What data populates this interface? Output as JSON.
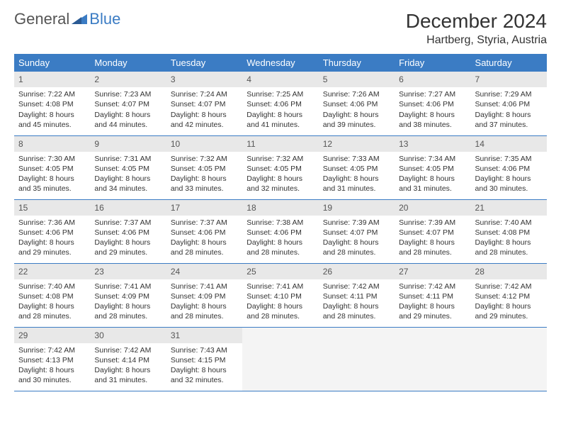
{
  "logo": {
    "text1": "General",
    "text2": "Blue"
  },
  "title": "December 2024",
  "location": "Hartberg, Styria, Austria",
  "colors": {
    "header_bg": "#3b7cc4",
    "header_text": "#ffffff",
    "daynum_bg": "#e8e8e8",
    "border": "#3b7cc4",
    "logo_blue": "#3b7cc4"
  },
  "day_headers": [
    "Sunday",
    "Monday",
    "Tuesday",
    "Wednesday",
    "Thursday",
    "Friday",
    "Saturday"
  ],
  "weeks": [
    [
      {
        "n": "1",
        "sr": "7:22 AM",
        "ss": "4:08 PM",
        "dl": "8 hours and 45 minutes."
      },
      {
        "n": "2",
        "sr": "7:23 AM",
        "ss": "4:07 PM",
        "dl": "8 hours and 44 minutes."
      },
      {
        "n": "3",
        "sr": "7:24 AM",
        "ss": "4:07 PM",
        "dl": "8 hours and 42 minutes."
      },
      {
        "n": "4",
        "sr": "7:25 AM",
        "ss": "4:06 PM",
        "dl": "8 hours and 41 minutes."
      },
      {
        "n": "5",
        "sr": "7:26 AM",
        "ss": "4:06 PM",
        "dl": "8 hours and 39 minutes."
      },
      {
        "n": "6",
        "sr": "7:27 AM",
        "ss": "4:06 PM",
        "dl": "8 hours and 38 minutes."
      },
      {
        "n": "7",
        "sr": "7:29 AM",
        "ss": "4:06 PM",
        "dl": "8 hours and 37 minutes."
      }
    ],
    [
      {
        "n": "8",
        "sr": "7:30 AM",
        "ss": "4:05 PM",
        "dl": "8 hours and 35 minutes."
      },
      {
        "n": "9",
        "sr": "7:31 AM",
        "ss": "4:05 PM",
        "dl": "8 hours and 34 minutes."
      },
      {
        "n": "10",
        "sr": "7:32 AM",
        "ss": "4:05 PM",
        "dl": "8 hours and 33 minutes."
      },
      {
        "n": "11",
        "sr": "7:32 AM",
        "ss": "4:05 PM",
        "dl": "8 hours and 32 minutes."
      },
      {
        "n": "12",
        "sr": "7:33 AM",
        "ss": "4:05 PM",
        "dl": "8 hours and 31 minutes."
      },
      {
        "n": "13",
        "sr": "7:34 AM",
        "ss": "4:05 PM",
        "dl": "8 hours and 31 minutes."
      },
      {
        "n": "14",
        "sr": "7:35 AM",
        "ss": "4:06 PM",
        "dl": "8 hours and 30 minutes."
      }
    ],
    [
      {
        "n": "15",
        "sr": "7:36 AM",
        "ss": "4:06 PM",
        "dl": "8 hours and 29 minutes."
      },
      {
        "n": "16",
        "sr": "7:37 AM",
        "ss": "4:06 PM",
        "dl": "8 hours and 29 minutes."
      },
      {
        "n": "17",
        "sr": "7:37 AM",
        "ss": "4:06 PM",
        "dl": "8 hours and 28 minutes."
      },
      {
        "n": "18",
        "sr": "7:38 AM",
        "ss": "4:06 PM",
        "dl": "8 hours and 28 minutes."
      },
      {
        "n": "19",
        "sr": "7:39 AM",
        "ss": "4:07 PM",
        "dl": "8 hours and 28 minutes."
      },
      {
        "n": "20",
        "sr": "7:39 AM",
        "ss": "4:07 PM",
        "dl": "8 hours and 28 minutes."
      },
      {
        "n": "21",
        "sr": "7:40 AM",
        "ss": "4:08 PM",
        "dl": "8 hours and 28 minutes."
      }
    ],
    [
      {
        "n": "22",
        "sr": "7:40 AM",
        "ss": "4:08 PM",
        "dl": "8 hours and 28 minutes."
      },
      {
        "n": "23",
        "sr": "7:41 AM",
        "ss": "4:09 PM",
        "dl": "8 hours and 28 minutes."
      },
      {
        "n": "24",
        "sr": "7:41 AM",
        "ss": "4:09 PM",
        "dl": "8 hours and 28 minutes."
      },
      {
        "n": "25",
        "sr": "7:41 AM",
        "ss": "4:10 PM",
        "dl": "8 hours and 28 minutes."
      },
      {
        "n": "26",
        "sr": "7:42 AM",
        "ss": "4:11 PM",
        "dl": "8 hours and 28 minutes."
      },
      {
        "n": "27",
        "sr": "7:42 AM",
        "ss": "4:11 PM",
        "dl": "8 hours and 29 minutes."
      },
      {
        "n": "28",
        "sr": "7:42 AM",
        "ss": "4:12 PM",
        "dl": "8 hours and 29 minutes."
      }
    ],
    [
      {
        "n": "29",
        "sr": "7:42 AM",
        "ss": "4:13 PM",
        "dl": "8 hours and 30 minutes."
      },
      {
        "n": "30",
        "sr": "7:42 AM",
        "ss": "4:14 PM",
        "dl": "8 hours and 31 minutes."
      },
      {
        "n": "31",
        "sr": "7:43 AM",
        "ss": "4:15 PM",
        "dl": "8 hours and 32 minutes."
      },
      null,
      null,
      null,
      null
    ]
  ],
  "labels": {
    "sunrise": "Sunrise:",
    "sunset": "Sunset:",
    "daylight": "Daylight:"
  }
}
